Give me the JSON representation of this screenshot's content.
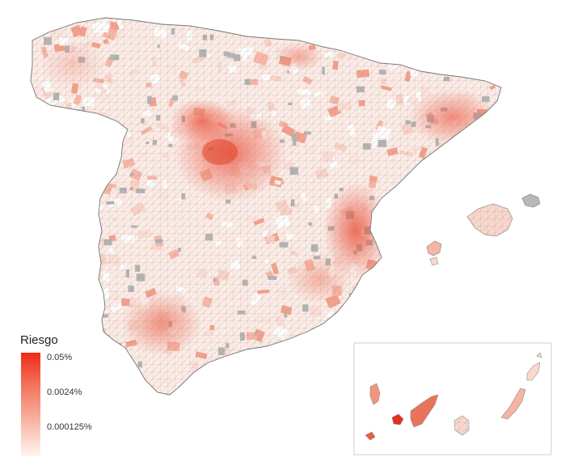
{
  "legend": {
    "title": "Riesgo",
    "labels": [
      "0.05%",
      "0.0024%",
      "0.000125%"
    ]
  },
  "colors": {
    "high": "#ef2a16",
    "mid": "#f59a86",
    "low": "#fde3dc",
    "none": "#ffffff",
    "no_data": "#b3b3b3",
    "border": "#8c8c8c"
  },
  "regions": [
    "peninsula",
    "balearic-islands",
    "canary-islands-inset"
  ]
}
